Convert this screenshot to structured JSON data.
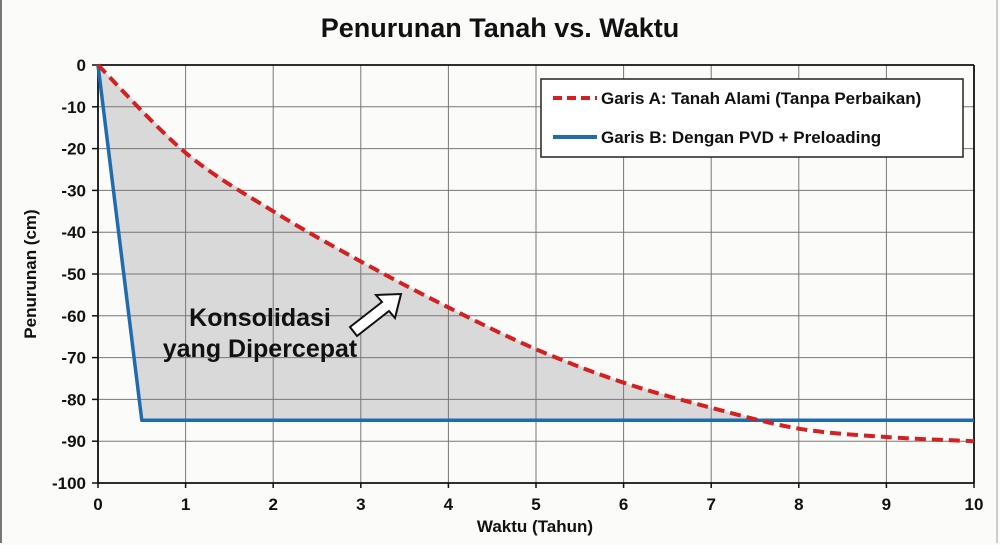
{
  "chart_data": {
    "type": "line",
    "title": "Penurunan Tanah vs. Waktu",
    "xlabel": "Waktu (Tahun)",
    "ylabel": "Penurunan (cm)",
    "xlim": [
      0,
      10
    ],
    "ylim": [
      -100,
      0
    ],
    "x_ticks": [
      "0",
      "1",
      "2",
      "3",
      "4",
      "5",
      "6",
      "7",
      "8",
      "9",
      "10"
    ],
    "y_ticks": [
      "0",
      "-10",
      "-20",
      "-30",
      "-40",
      "-50",
      "-60",
      "-70",
      "-80",
      "-90",
      "-100"
    ],
    "grid": true,
    "legend_position": "upper right",
    "series": [
      {
        "name": "Garis A: Tanah Alami (Tanpa Perbaikan)",
        "style": "dashed",
        "color": "#d42020",
        "x": [
          0,
          1,
          2,
          3,
          4,
          5,
          6,
          7,
          8,
          9,
          10
        ],
        "y": [
          0,
          -21,
          -35,
          -47,
          -58,
          -68,
          -76,
          -82,
          -87,
          -89,
          -90
        ]
      },
      {
        "name": "Garis B: Dengan PVD + Preloading",
        "style": "solid",
        "color": "#1f6bb0",
        "x": [
          0,
          0.5,
          10
        ],
        "y": [
          0,
          -85,
          -85
        ]
      }
    ],
    "annotations": [
      {
        "text": "Konsolidasi yang Dipercepat",
        "lines": [
          "Konsolidasi",
          "yang Dipercepat"
        ],
        "arrow": true,
        "shaded_region_between_series": true,
        "shade_color": "#d9d9d9"
      }
    ]
  }
}
